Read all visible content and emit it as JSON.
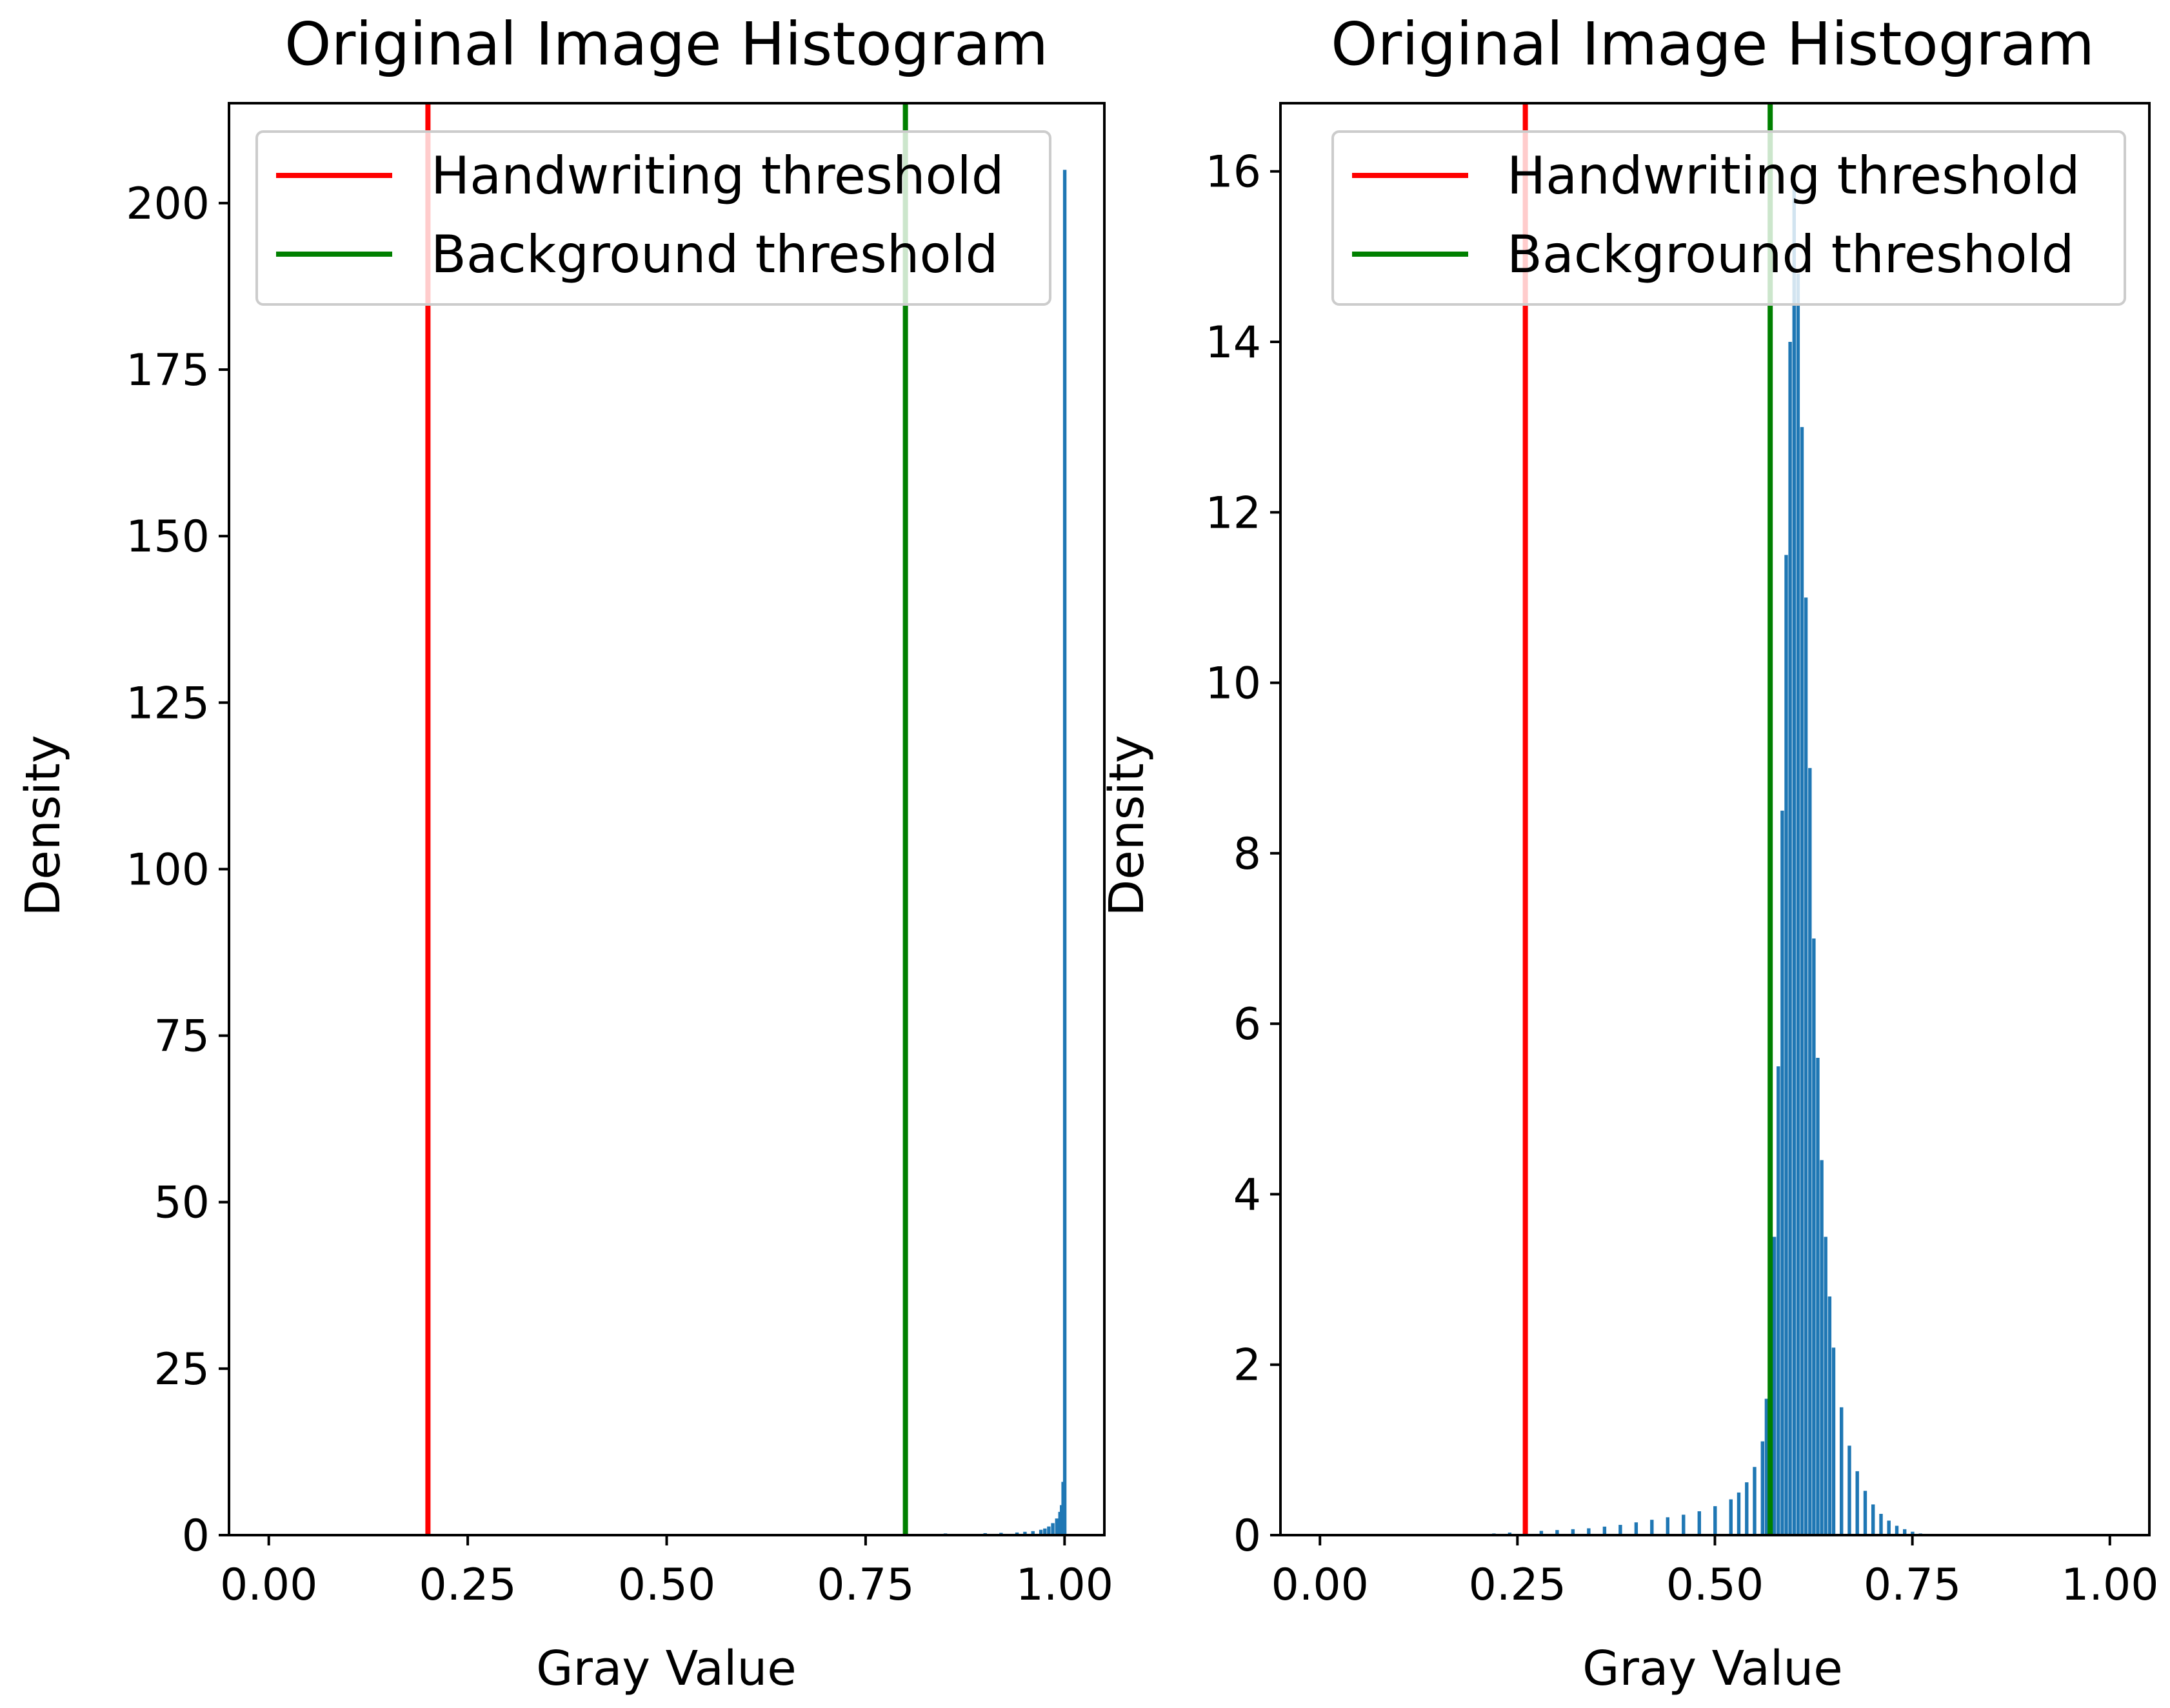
{
  "chart_data": [
    {
      "type": "bar",
      "title": "Original Image Histogram",
      "xlabel": "Gray Value",
      "ylabel": "Density",
      "xlim": [
        -0.05,
        1.05
      ],
      "ylim": [
        0,
        215
      ],
      "xticks": [
        "0.00",
        "0.25",
        "0.50",
        "0.75",
        "1.00"
      ],
      "yticks": [
        "0",
        "25",
        "50",
        "75",
        "100",
        "125",
        "150",
        "175",
        "200"
      ],
      "bar_color": "#1f77b4",
      "bin_width": 0.0039,
      "series": [
        {
          "x": [
            0.65,
            0.7,
            0.75,
            0.8,
            0.85,
            0.9,
            0.92,
            0.94,
            0.95,
            0.96,
            0.97,
            0.975,
            0.98,
            0.985,
            0.99,
            0.994,
            0.996,
            0.998,
            1.0
          ],
          "values": [
            0.1,
            0.1,
            0.15,
            0.2,
            0.25,
            0.3,
            0.35,
            0.4,
            0.5,
            0.6,
            0.8,
            1.0,
            1.3,
            1.8,
            2.5,
            3.5,
            4.5,
            8.0,
            205
          ]
        }
      ],
      "lines": [
        {
          "name": "Handwriting threshold",
          "x": 0.2,
          "color": "#ff0000"
        },
        {
          "name": "Background threshold",
          "x": 0.8,
          "color": "#008000"
        }
      ],
      "legend": "top-center"
    },
    {
      "type": "bar",
      "title": "Original Image Histogram",
      "xlabel": "Gray Value",
      "ylabel": "Density",
      "xlim": [
        -0.05,
        1.05
      ],
      "ylim": [
        0,
        16.8
      ],
      "xticks": [
        "0.00",
        "0.25",
        "0.50",
        "0.75",
        "1.00"
      ],
      "yticks": [
        "0",
        "2",
        "4",
        "6",
        "8",
        "10",
        "12",
        "14",
        "16"
      ],
      "bar_color": "#1f77b4",
      "bin_width": 0.0039,
      "series": [
        {
          "x": [
            0.2,
            0.22,
            0.24,
            0.26,
            0.28,
            0.3,
            0.32,
            0.34,
            0.36,
            0.38,
            0.4,
            0.42,
            0.44,
            0.46,
            0.48,
            0.5,
            0.52,
            0.53,
            0.54,
            0.55,
            0.56,
            0.565,
            0.57,
            0.575,
            0.58,
            0.585,
            0.59,
            0.595,
            0.6,
            0.605,
            0.61,
            0.615,
            0.62,
            0.625,
            0.63,
            0.635,
            0.64,
            0.645,
            0.65,
            0.66,
            0.67,
            0.68,
            0.69,
            0.7,
            0.71,
            0.72,
            0.73,
            0.74,
            0.75,
            0.76,
            0.78,
            0.8
          ],
          "values": [
            0.01,
            0.02,
            0.03,
            0.04,
            0.05,
            0.06,
            0.07,
            0.08,
            0.1,
            0.12,
            0.15,
            0.18,
            0.21,
            0.24,
            0.28,
            0.34,
            0.42,
            0.5,
            0.62,
            0.8,
            1.1,
            1.6,
            2.3,
            3.5,
            5.5,
            8.5,
            11.5,
            14.0,
            15.8,
            14.8,
            13.0,
            11.0,
            9.0,
            7.0,
            5.6,
            4.4,
            3.5,
            2.8,
            2.2,
            1.5,
            1.05,
            0.75,
            0.52,
            0.36,
            0.25,
            0.17,
            0.11,
            0.07,
            0.04,
            0.02,
            0.01,
            0.0
          ]
        }
      ],
      "lines": [
        {
          "name": "Handwriting threshold",
          "x": 0.26,
          "color": "#ff0000"
        },
        {
          "name": "Background threshold",
          "x": 0.57,
          "color": "#008000"
        }
      ],
      "legend": "top-center"
    }
  ]
}
